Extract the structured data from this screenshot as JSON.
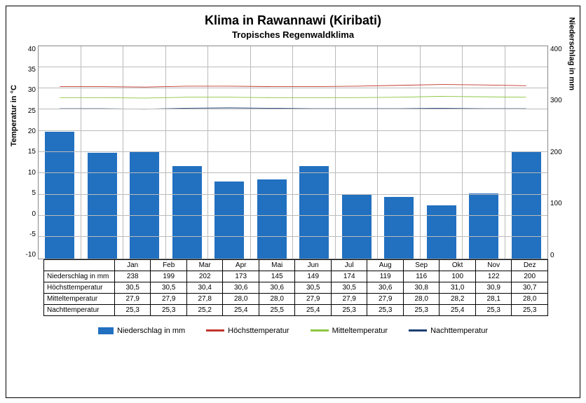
{
  "title": "Klima in Rawannawi (Kiribati)",
  "subtitle": "Tropisches Regenwaldklima",
  "ylabel_left": "Temperatur in °C",
  "ylabel_right": "Niederschlag in mm",
  "months": [
    "Jan",
    "Feb",
    "Mar",
    "Apr",
    "Mai",
    "Jun",
    "Jul",
    "Aug",
    "Sep",
    "Okt",
    "Nov",
    "Dez"
  ],
  "left_axis": {
    "min": -10,
    "max": 40,
    "step": 5
  },
  "right_axis": {
    "min": 0,
    "max": 400,
    "step": 100
  },
  "series": {
    "precip": {
      "label": "Niederschlag in mm",
      "color": "#2270c0",
      "values": [
        238,
        199,
        202,
        173,
        145,
        149,
        174,
        119,
        116,
        100,
        122,
        200
      ],
      "type": "bar",
      "display": [
        "238",
        "199",
        "202",
        "173",
        "145",
        "149",
        "174",
        "119",
        "116",
        "100",
        "122",
        "200"
      ]
    },
    "high": {
      "label": "Höchsttemperatur",
      "color": "#c0362c",
      "values": [
        30.5,
        30.5,
        30.4,
        30.6,
        30.6,
        30.5,
        30.5,
        30.6,
        30.8,
        31.0,
        30.9,
        30.7
      ],
      "display": [
        "30,5",
        "30,5",
        "30,4",
        "30,6",
        "30,6",
        "30,5",
        "30,5",
        "30,6",
        "30,8",
        "31,0",
        "30,9",
        "30,7"
      ]
    },
    "mean": {
      "label": "Mitteltemperatur",
      "color": "#8cc63f",
      "values": [
        27.9,
        27.9,
        27.8,
        28.0,
        28.0,
        27.9,
        27.9,
        27.9,
        28.0,
        28.2,
        28.1,
        28.0
      ],
      "display": [
        "27,9",
        "27,9",
        "27,8",
        "28,0",
        "28,0",
        "27,9",
        "27,9",
        "27,9",
        "28,0",
        "28,2",
        "28,1",
        "28,0"
      ]
    },
    "low": {
      "label": "Nachttemperatur",
      "color": "#1d3f73",
      "values": [
        25.3,
        25.3,
        25.2,
        25.4,
        25.5,
        25.4,
        25.3,
        25.3,
        25.3,
        25.4,
        25.3,
        25.3
      ],
      "display": [
        "25,3",
        "25,3",
        "25,2",
        "25,4",
        "25,5",
        "25,4",
        "25,3",
        "25,3",
        "25,3",
        "25,4",
        "25,3",
        "25,3"
      ]
    }
  },
  "row_labels": [
    "Niederschlag in mm",
    "Höchsttemperatur",
    "Mitteltemperatur",
    "Nachttemperatur"
  ],
  "legend_items": [
    {
      "type": "bar",
      "key": "precip"
    },
    {
      "type": "line",
      "key": "high"
    },
    {
      "type": "line",
      "key": "mean"
    },
    {
      "type": "line",
      "key": "low"
    }
  ]
}
